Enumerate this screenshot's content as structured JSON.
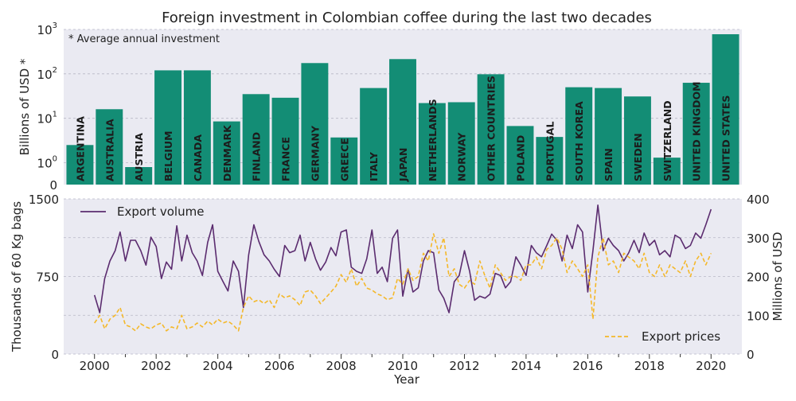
{
  "title": "Foreign investment in Colombian coffee during the last two decades",
  "chart_data": [
    {
      "type": "bar",
      "title": "Foreign investment in Colombian coffee during the last two decades",
      "ylabel": "Billions of USD *",
      "yscale": "log",
      "ylim": [
        0,
        1000
      ],
      "ytick_labels": [
        "0",
        "10^0",
        "10^1",
        "10^2",
        "10^3"
      ],
      "annotation": "* Average annual investment",
      "bar_color": "#138d75",
      "grid": true,
      "categories": [
        "ARGENTINA",
        "AUSTRALIA",
        "AUSTRIA",
        "BELGIUM",
        "CANADA",
        "DENMARK",
        "FINLAND",
        "FRANCE",
        "GERMANY",
        "GREECE",
        "ITALY",
        "JAPAN",
        "NETHERLANDS",
        "NORWAY",
        "OTHER COUNTRIES",
        "POLAND",
        "PORTUGAL",
        "SOUTH KOREA",
        "SPAIN",
        "SWEDEN",
        "SWITZERLAND",
        "UNITED KINGDOM",
        "UNITED STATES"
      ],
      "values": [
        2.5,
        16,
        0.8,
        120,
        120,
        8.5,
        35,
        29,
        175,
        3.7,
        48,
        215,
        22,
        23,
        98,
        6.7,
        3.8,
        50,
        48,
        31,
        1.3,
        63,
        780
      ]
    },
    {
      "type": "line",
      "xlabel": "Year",
      "ylabel": "Thousands of 60 Kg bags",
      "y2label": "Millions of USD",
      "xlim": [
        1999.0,
        2021.0
      ],
      "ylim": [
        0,
        1500
      ],
      "y2lim": [
        0,
        400
      ],
      "xticks": [
        2000,
        2002,
        2004,
        2006,
        2008,
        2010,
        2012,
        2014,
        2016,
        2018,
        2020
      ],
      "yticks": [
        0,
        750,
        1500
      ],
      "y2ticks": [
        0,
        100,
        200,
        300,
        400
      ],
      "grid": true,
      "legend_placement": [
        "upper-left",
        "lower-right"
      ],
      "series": [
        {
          "name": "Export volume",
          "axis": "left",
          "color": "#5b2c6f",
          "style": "solid",
          "x": [
            2000.0,
            2000.17,
            2000.33,
            2000.5,
            2000.67,
            2000.83,
            2001.0,
            2001.17,
            2001.33,
            2001.5,
            2001.67,
            2001.83,
            2002.0,
            2002.17,
            2002.33,
            2002.5,
            2002.67,
            2002.83,
            2003.0,
            2003.17,
            2003.33,
            2003.5,
            2003.67,
            2003.83,
            2004.0,
            2004.17,
            2004.33,
            2004.5,
            2004.67,
            2004.83,
            2005.0,
            2005.17,
            2005.33,
            2005.5,
            2005.67,
            2005.83,
            2006.0,
            2006.17,
            2006.33,
            2006.5,
            2006.67,
            2006.83,
            2007.0,
            2007.17,
            2007.33,
            2007.5,
            2007.67,
            2007.83,
            2008.0,
            2008.17,
            2008.33,
            2008.5,
            2008.67,
            2008.83,
            2009.0,
            2009.17,
            2009.33,
            2009.5,
            2009.67,
            2009.83,
            2010.0,
            2010.17,
            2010.33,
            2010.5,
            2010.67,
            2010.83,
            2011.0,
            2011.17,
            2011.33,
            2011.5,
            2011.67,
            2011.83,
            2012.0,
            2012.17,
            2012.33,
            2012.5,
            2012.67,
            2012.83,
            2013.0,
            2013.17,
            2013.33,
            2013.5,
            2013.67,
            2013.83,
            2014.0,
            2014.17,
            2014.33,
            2014.5,
            2014.67,
            2014.83,
            2015.0,
            2015.17,
            2015.33,
            2015.5,
            2015.67,
            2015.83,
            2016.0,
            2016.17,
            2016.33,
            2016.5,
            2016.67,
            2016.83,
            2017.0,
            2017.17,
            2017.33,
            2017.5,
            2017.67,
            2017.83,
            2018.0,
            2018.17,
            2018.33,
            2018.5,
            2018.67,
            2018.83,
            2019.0,
            2019.17,
            2019.33,
            2019.5,
            2019.67,
            2019.83,
            2020.0
          ],
          "y": [
            570,
            400,
            730,
            900,
            1000,
            1180,
            900,
            1100,
            1100,
            1000,
            860,
            1130,
            1040,
            730,
            890,
            820,
            1240,
            900,
            1150,
            980,
            900,
            760,
            1080,
            1250,
            800,
            700,
            610,
            900,
            800,
            450,
            960,
            1250,
            1090,
            960,
            900,
            820,
            750,
            1050,
            980,
            1000,
            1150,
            900,
            1080,
            920,
            810,
            890,
            1030,
            950,
            1180,
            1200,
            840,
            800,
            780,
            920,
            1200,
            780,
            840,
            700,
            1120,
            1200,
            560,
            820,
            600,
            640,
            900,
            1000,
            980,
            620,
            540,
            400,
            700,
            760,
            1000,
            800,
            520,
            560,
            540,
            580,
            780,
            760,
            640,
            700,
            940,
            860,
            760,
            1050,
            980,
            940,
            1050,
            1160,
            1100,
            900,
            1150,
            1020,
            1250,
            1180,
            600,
            1000,
            1440,
            1000,
            1120,
            1050,
            1000,
            900,
            980,
            1100,
            980,
            1170,
            1050,
            1100,
            960,
            1000,
            940,
            1150,
            1120,
            1020,
            1050,
            1170,
            1120,
            1250,
            1400
          ]
        },
        {
          "name": "Export prices",
          "axis": "right",
          "color": "#f4b82a",
          "style": "dashed",
          "x": [
            2000.0,
            2000.17,
            2000.33,
            2000.5,
            2000.67,
            2000.83,
            2001.0,
            2001.17,
            2001.33,
            2001.5,
            2001.67,
            2001.83,
            2002.0,
            2002.17,
            2002.33,
            2002.5,
            2002.67,
            2002.83,
            2003.0,
            2003.17,
            2003.33,
            2003.5,
            2003.67,
            2003.83,
            2004.0,
            2004.17,
            2004.33,
            2004.5,
            2004.67,
            2004.83,
            2005.0,
            2005.17,
            2005.33,
            2005.5,
            2005.67,
            2005.83,
            2006.0,
            2006.17,
            2006.33,
            2006.5,
            2006.67,
            2006.83,
            2007.0,
            2007.17,
            2007.33,
            2007.5,
            2007.67,
            2007.83,
            2008.0,
            2008.17,
            2008.33,
            2008.5,
            2008.67,
            2008.83,
            2009.0,
            2009.17,
            2009.33,
            2009.5,
            2009.67,
            2009.83,
            2010.0,
            2010.17,
            2010.33,
            2010.5,
            2010.67,
            2010.83,
            2011.0,
            2011.17,
            2011.33,
            2011.5,
            2011.67,
            2011.83,
            2012.0,
            2012.17,
            2012.33,
            2012.5,
            2012.67,
            2012.83,
            2013.0,
            2013.17,
            2013.33,
            2013.5,
            2013.67,
            2013.83,
            2014.0,
            2014.17,
            2014.33,
            2014.5,
            2014.67,
            2014.83,
            2015.0,
            2015.17,
            2015.33,
            2015.5,
            2015.67,
            2015.83,
            2016.0,
            2016.17,
            2016.33,
            2016.5,
            2016.67,
            2016.83,
            2017.0,
            2017.17,
            2017.33,
            2017.5,
            2017.67,
            2017.83,
            2018.0,
            2018.17,
            2018.33,
            2018.5,
            2018.67,
            2018.83,
            2019.0,
            2019.17,
            2019.33,
            2019.5,
            2019.67,
            2019.83,
            2020.0
          ],
          "y": [
            80,
            100,
            65,
            90,
            100,
            120,
            75,
            70,
            60,
            78,
            70,
            65,
            75,
            80,
            60,
            70,
            65,
            100,
            65,
            70,
            80,
            70,
            85,
            75,
            90,
            80,
            85,
            75,
            60,
            120,
            150,
            135,
            140,
            130,
            140,
            120,
            155,
            145,
            150,
            140,
            125,
            160,
            165,
            150,
            130,
            145,
            160,
            175,
            205,
            185,
            220,
            175,
            195,
            170,
            165,
            155,
            150,
            140,
            145,
            195,
            180,
            220,
            190,
            200,
            260,
            240,
            310,
            260,
            300,
            200,
            220,
            180,
            170,
            190,
            180,
            240,
            200,
            170,
            230,
            210,
            190,
            200,
            200,
            190,
            230,
            230,
            250,
            220,
            270,
            280,
            300,
            270,
            210,
            240,
            220,
            200,
            230,
            90,
            250,
            300,
            230,
            240,
            210,
            260,
            250,
            240,
            220,
            260,
            210,
            200,
            230,
            200,
            230,
            220,
            210,
            240,
            200,
            240,
            260,
            230,
            260
          ]
        }
      ]
    }
  ]
}
